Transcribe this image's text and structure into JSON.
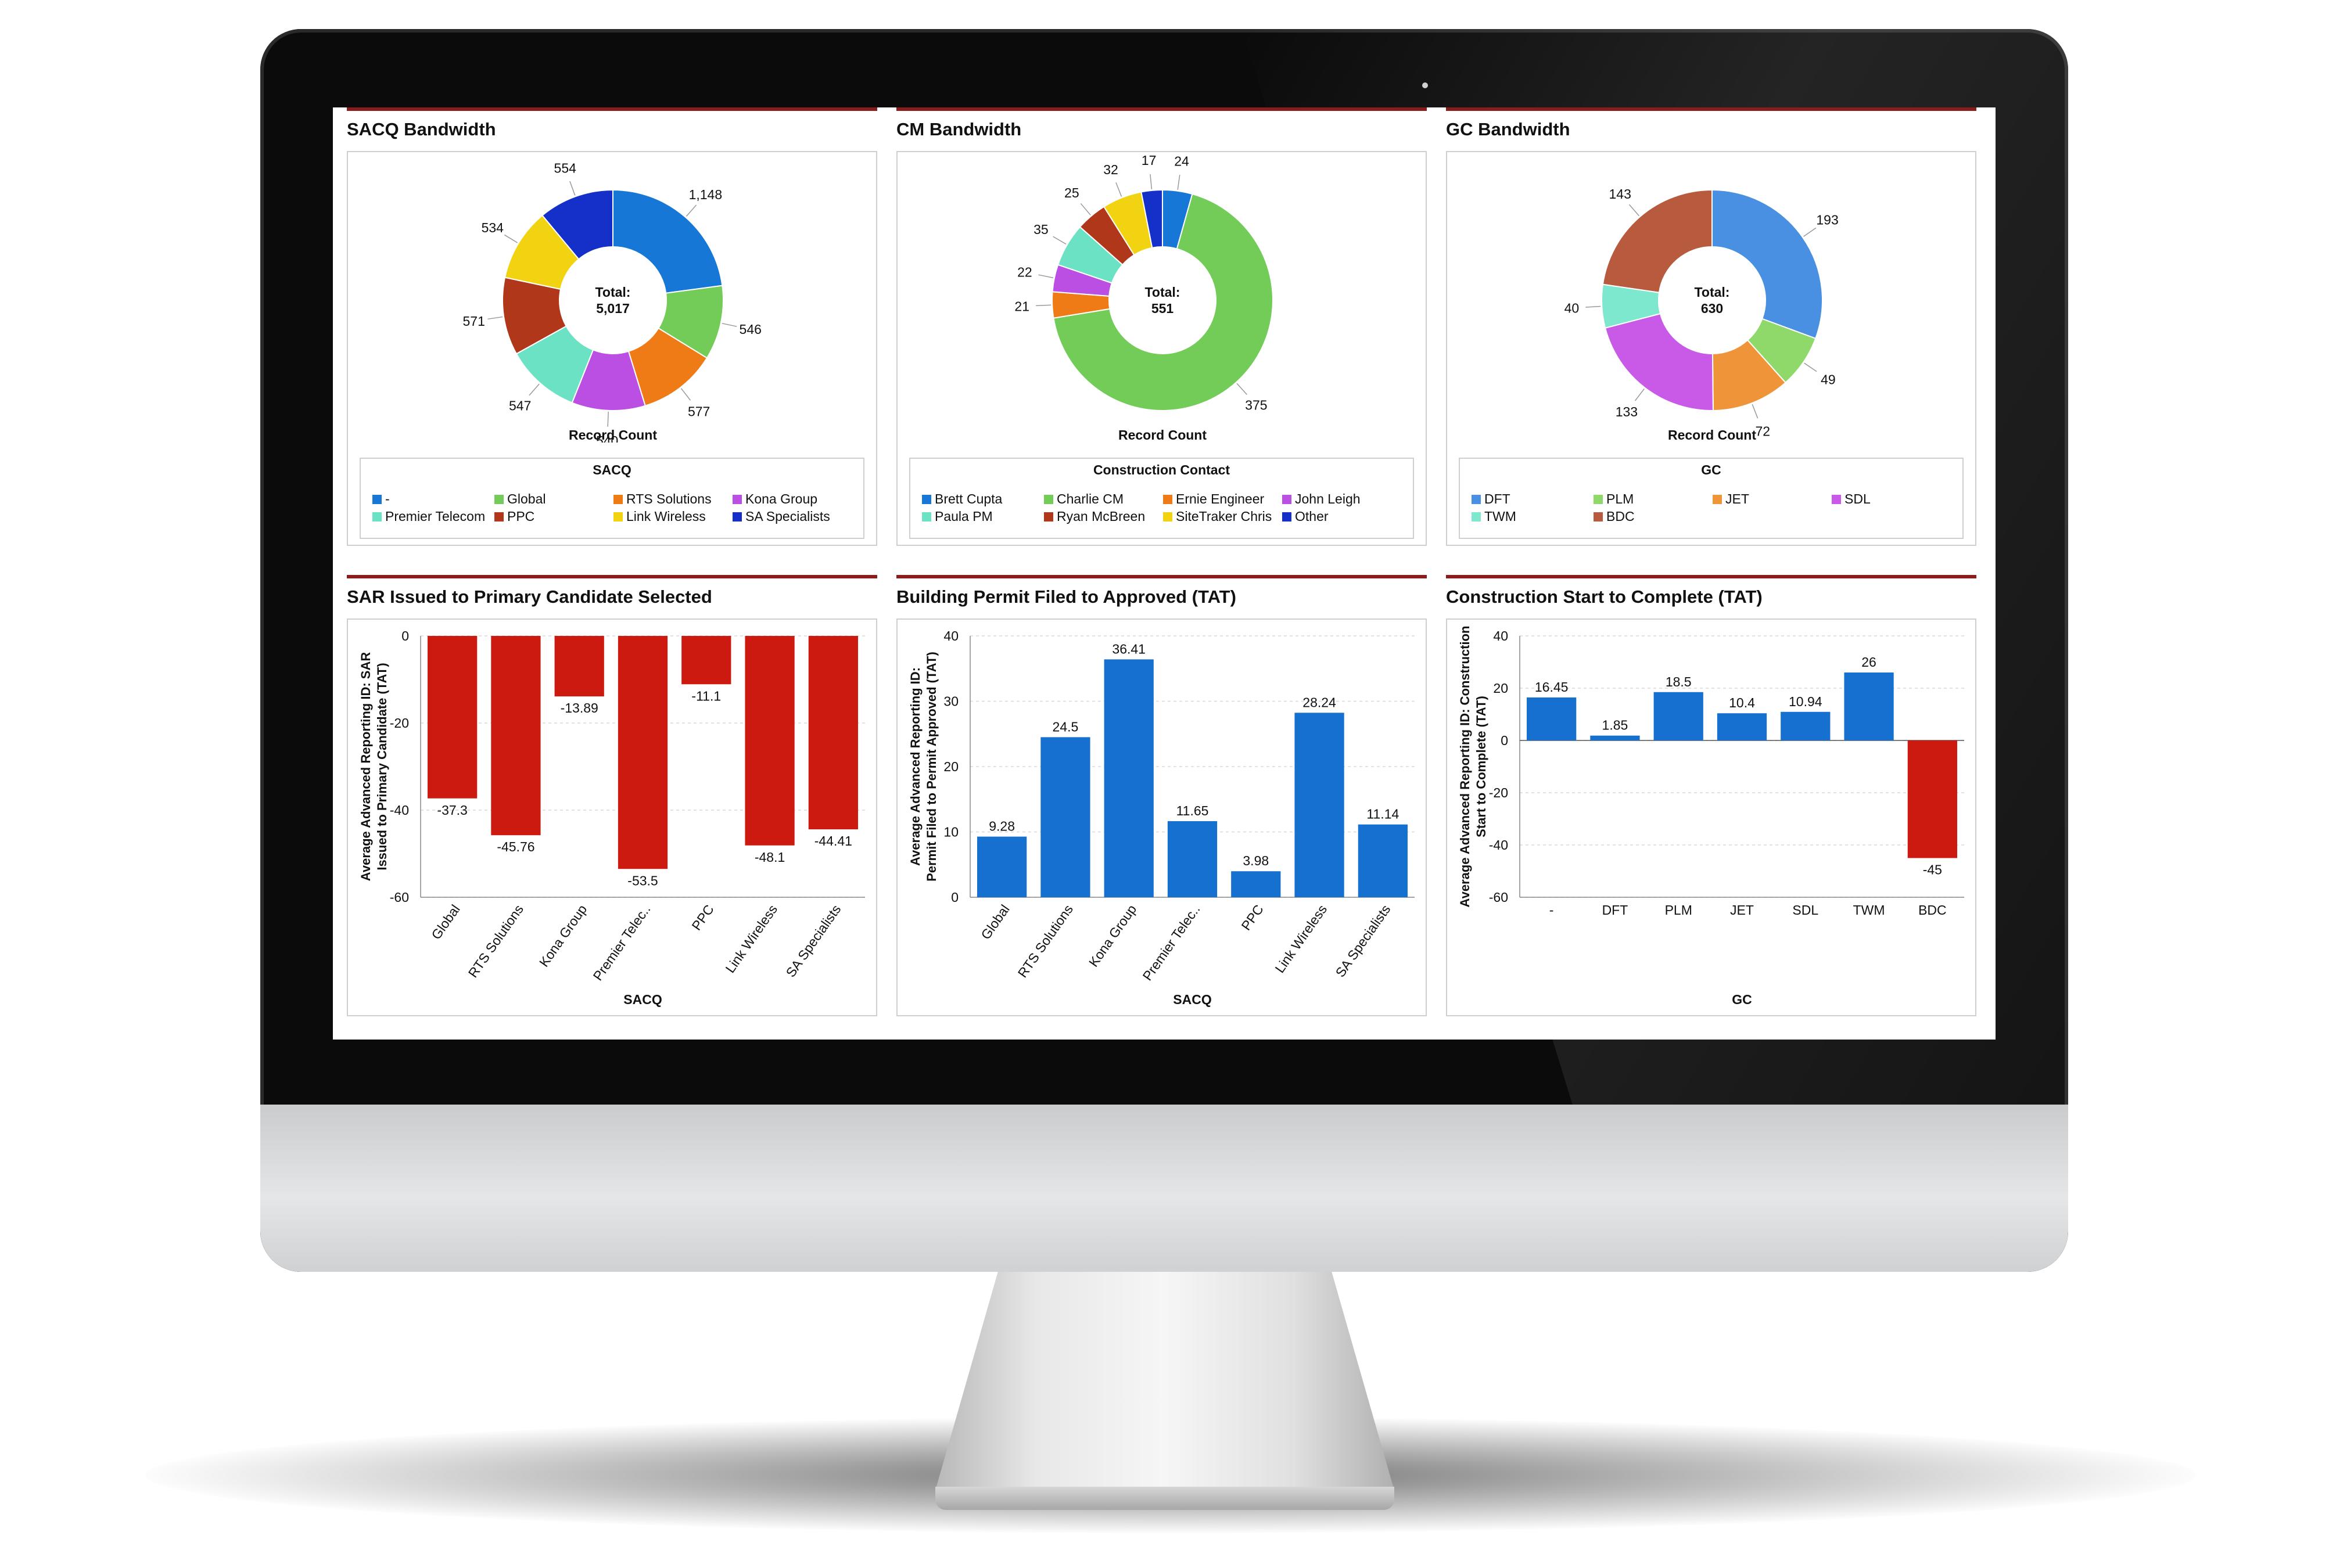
{
  "dashboard": {
    "panels": [
      {
        "id": "sacq-bandwidth",
        "title": "SACQ Bandwidth",
        "chart_data": {
          "type": "pie",
          "style": "donut",
          "center_label": "Total:",
          "center_value": "5,017",
          "xlabel": "Record Count",
          "legend_title": "SACQ",
          "slices": [
            {
              "label": "-",
              "value": 1148,
              "value_label": "1,148",
              "color": "#1677d6"
            },
            {
              "label": "Global",
              "value": 546,
              "value_label": "546",
              "color": "#72cc57"
            },
            {
              "label": "RTS Solutions",
              "value": 577,
              "value_label": "577",
              "color": "#ef7b17"
            },
            {
              "label": "Kona Group",
              "value": 540,
              "value_label": "540",
              "color": "#bc4fe3"
            },
            {
              "label": "Premier Telecom",
              "value": 547,
              "value_label": "547",
              "color": "#6be2c3"
            },
            {
              "label": "PPC",
              "value": 571,
              "value_label": "571",
              "color": "#b0371a"
            },
            {
              "label": "Link Wireless",
              "value": 534,
              "value_label": "534",
              "color": "#f2d311"
            },
            {
              "label": "SA Specialists",
              "value": 554,
              "value_label": "554",
              "color": "#1430c8"
            }
          ],
          "legend_order": [
            "-",
            "Global",
            "RTS Solutions",
            "Kona Group",
            "Premier Telecom",
            "PPC",
            "Link Wireless",
            "SA Specialists"
          ]
        }
      },
      {
        "id": "cm-bandwidth",
        "title": "CM Bandwidth",
        "chart_data": {
          "type": "pie",
          "style": "donut",
          "center_label": "Total:",
          "center_value": "551",
          "xlabel": "Record Count",
          "legend_title": "Construction Contact",
          "slices": [
            {
              "label": "Brett Cupta",
              "value": 24,
              "value_label": "24",
              "color": "#1677d6"
            },
            {
              "label": "Charlie CM",
              "value": 375,
              "value_label": "375",
              "color": "#72cc57"
            },
            {
              "label": "Ernie Engineer",
              "value": 21,
              "value_label": "21",
              "color": "#ef7b17"
            },
            {
              "label": "John Leigh",
              "value": 22,
              "value_label": "22",
              "color": "#bc4fe3"
            },
            {
              "label": "Paula PM",
              "value": 35,
              "value_label": "35",
              "color": "#6be2c3"
            },
            {
              "label": "Ryan McBreen",
              "value": 25,
              "value_label": "25",
              "color": "#b0371a"
            },
            {
              "label": "SiteTraker Chris",
              "value": 32,
              "value_label": "32",
              "color": "#f2d311"
            },
            {
              "label": "Other",
              "value": 17,
              "value_label": "17",
              "color": "#1430c8"
            }
          ],
          "legend_order": [
            "Brett Cupta",
            "Charlie CM",
            "Ernie Engineer",
            "John Leigh",
            "Paula PM",
            "Ryan McBreen",
            "SiteTraker Chris",
            "Other"
          ]
        }
      },
      {
        "id": "gc-bandwidth",
        "title": "GC Bandwidth",
        "chart_data": {
          "type": "pie",
          "style": "donut",
          "center_label": "Total:",
          "center_value": "630",
          "xlabel": "Record Count",
          "legend_title": "GC",
          "slices": [
            {
              "label": "DFT",
              "value": 193,
              "value_label": "193",
              "color": "#4a90e2"
            },
            {
              "label": "PLM",
              "value": 49,
              "value_label": "49",
              "color": "#8fd96a"
            },
            {
              "label": "JET",
              "value": 72,
              "value_label": "72",
              "color": "#f0943a"
            },
            {
              "label": "SDL",
              "value": 133,
              "value_label": "133",
              "color": "#c95ae8"
            },
            {
              "label": "TWM",
              "value": 40,
              "value_label": "40",
              "color": "#7ee8cf"
            },
            {
              "label": "BDC",
              "value": 143,
              "value_label": "143",
              "color": "#b85a3e"
            }
          ],
          "legend_order": [
            "DFT",
            "PLM",
            "JET",
            "SDL",
            "TWM",
            "BDC"
          ]
        }
      },
      {
        "id": "sar-issued",
        "title": "SAR Issued to Primary Candidate Selected",
        "chart_data": {
          "type": "bar",
          "categories": [
            "Global",
            "RTS Solutions",
            "Kona Group",
            "Premier Telec..",
            "PPC",
            "Link Wireless",
            "SA Specialists"
          ],
          "values": [
            -37.3,
            -45.76,
            -13.89,
            -53.5,
            -11.1,
            -48.1,
            -44.41
          ],
          "value_labels": [
            "-37.3",
            "-45.76",
            "-13.89",
            "-53.5",
            "-11.1",
            "-48.1",
            "-44.41"
          ],
          "ylim": [
            -60,
            0
          ],
          "yticks": [
            0,
            -20,
            -40,
            -60
          ],
          "ylabel_lines": [
            "Average Advanced Reporting ID: SAR",
            "Issued to Primary Candidate (TAT)"
          ],
          "xlabel": "SACQ",
          "bar_color": "#cc1a10",
          "grid": true
        }
      },
      {
        "id": "building-permit",
        "title": "Building Permit Filed to Approved (TAT)",
        "chart_data": {
          "type": "bar",
          "categories": [
            "Global",
            "RTS Solutions",
            "Kona Group",
            "Premier Telec..",
            "PPC",
            "Link Wireless",
            "SA Specialists"
          ],
          "values": [
            9.28,
            24.5,
            36.41,
            11.65,
            3.98,
            28.24,
            11.14
          ],
          "value_labels": [
            "9.28",
            "24.5",
            "36.41",
            "11.65",
            "3.98",
            "28.24",
            "11.14"
          ],
          "ylim": [
            0,
            40
          ],
          "yticks": [
            0,
            10,
            20,
            30,
            40
          ],
          "ylabel_lines": [
            "Average Advanced Reporting ID:",
            "Permit Filed to Permit Approved (TAT)"
          ],
          "xlabel": "SACQ",
          "bar_color": "#1670d0",
          "grid": true
        }
      },
      {
        "id": "construction-start",
        "title": "Construction Start to Complete (TAT)",
        "chart_data": {
          "type": "bar",
          "categories": [
            "-",
            "DFT",
            "PLM",
            "JET",
            "SDL",
            "TWM",
            "BDC"
          ],
          "values": [
            16.45,
            1.85,
            18.5,
            10.4,
            10.94,
            26,
            -45
          ],
          "value_labels": [
            "16.45",
            "1.85",
            "18.5",
            "10.4",
            "10.94",
            "26",
            "-45"
          ],
          "ylim": [
            -60,
            40
          ],
          "yticks": [
            40,
            20,
            0,
            -20,
            -40,
            -60
          ],
          "ylabel_lines": [
            "Average Advanced Reporting ID: Construction",
            "Start to Complete (TAT)"
          ],
          "xlabel": "GC",
          "bar_color": "#1670d0",
          "negative_color": "#cc1a10",
          "grid": true,
          "straight_tick_labels": true
        }
      }
    ]
  }
}
